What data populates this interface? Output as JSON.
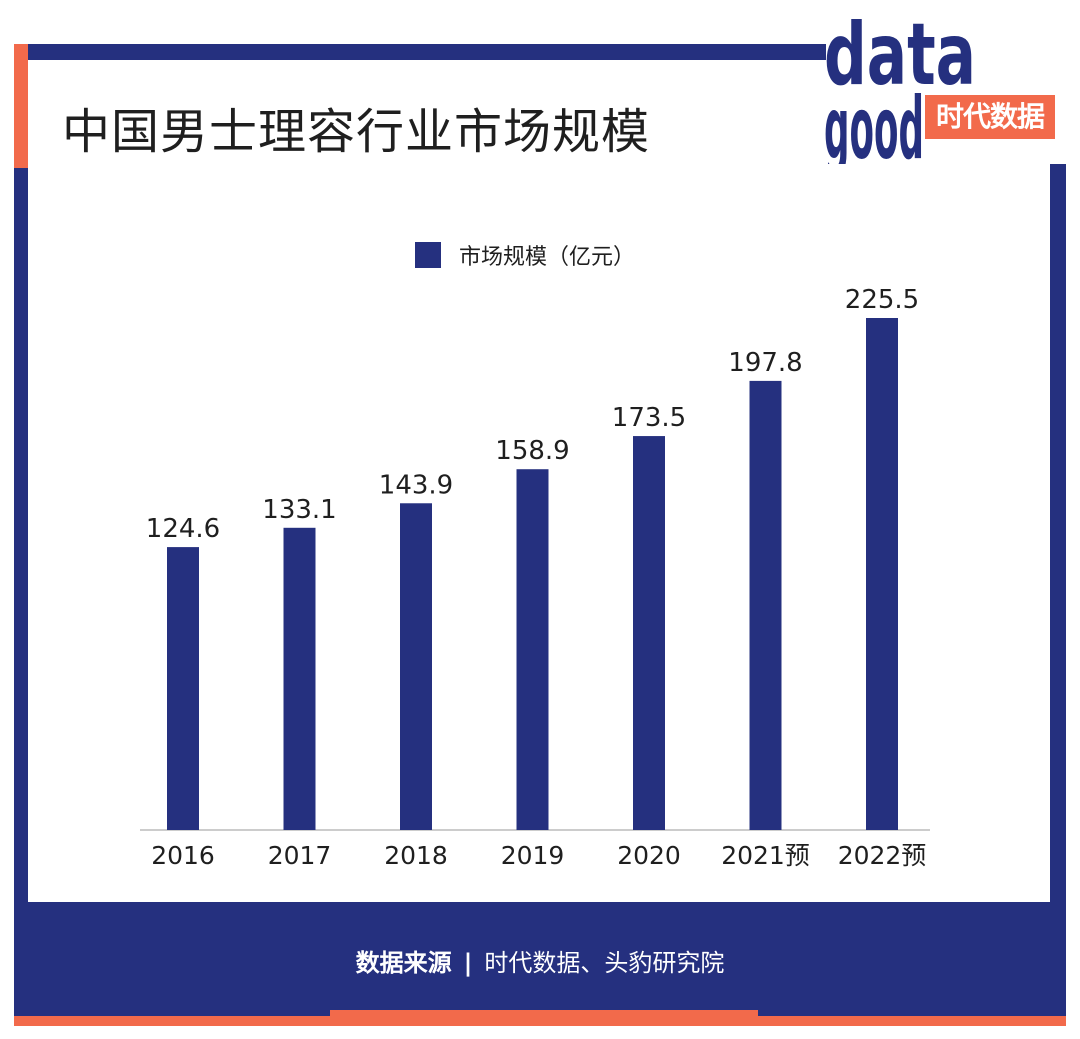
{
  "title": "中国男士理容行业市场规模",
  "logo": {
    "wordmark_top": "data",
    "wordmark_bottom": "good",
    "badge": "时代数据"
  },
  "colors": {
    "navy": "#25307f",
    "orange": "#f26a4b"
  },
  "footer": {
    "label": "数据来源",
    "separator": "|",
    "sources": "时代数据、头豹研究院"
  },
  "chart_data": {
    "type": "bar",
    "categories": [
      "2016",
      "2017",
      "2018",
      "2019",
      "2020",
      "2021预",
      "2022预"
    ],
    "series": [
      {
        "name": "市场规模（亿元）",
        "values": [
          124.6,
          133.1,
          143.9,
          158.9,
          173.5,
          197.8,
          225.5
        ]
      }
    ],
    "data_labels": [
      "124.6",
      "133.1",
      "143.9",
      "158.9",
      "173.5",
      "197.8",
      "225.5"
    ],
    "ylim": [
      0,
      225.5
    ],
    "legend_position": "top-center",
    "grid": false
  }
}
